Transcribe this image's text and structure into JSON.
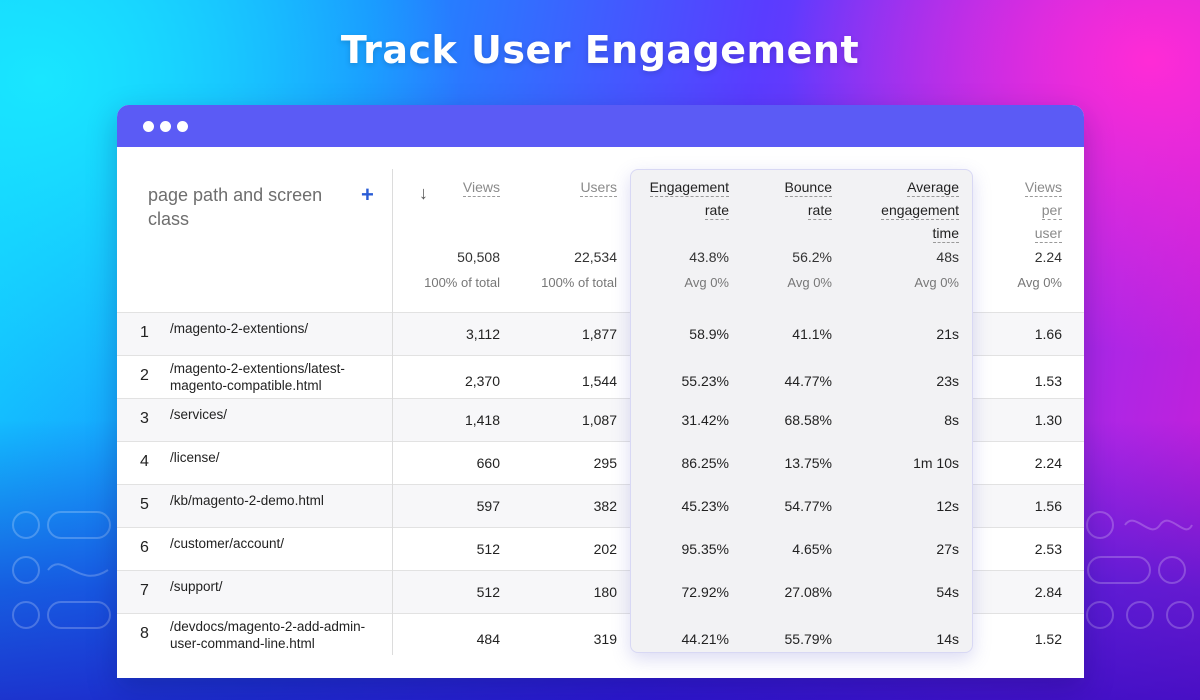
{
  "banner": {
    "title": "Track User Engagement"
  },
  "colors": {
    "window_bar": "#5b5bf5",
    "plus_accent": "#2a5cd6",
    "highlight_border": "#d8d8f4"
  },
  "table": {
    "dimension_header": "page path and screen class",
    "add_icon": "plus-icon",
    "sort_icon": "down-arrow-icon",
    "columns": [
      {
        "label_lines": [
          "Views"
        ],
        "total": "50,508",
        "sub": "100% of total"
      },
      {
        "label_lines": [
          "Users"
        ],
        "total": "22,534",
        "sub": "100% of total"
      },
      {
        "label_lines": [
          "Engagement",
          "rate"
        ],
        "total": "43.8%",
        "sub": "Avg 0%"
      },
      {
        "label_lines": [
          "Bounce",
          "rate"
        ],
        "total": "56.2%",
        "sub": "Avg 0%"
      },
      {
        "label_lines": [
          "Average",
          "engagement",
          "time"
        ],
        "total": "48s",
        "sub": "Avg 0%"
      },
      {
        "label_lines": [
          "Views",
          "per",
          "user"
        ],
        "total": "2.24",
        "sub": "Avg 0%"
      }
    ],
    "rows": [
      {
        "num": "1",
        "path": [
          "/magento-2-extentions/"
        ],
        "cells": [
          "3,112",
          "1,877",
          "58.9%",
          "41.1%",
          "21s",
          "1.66"
        ]
      },
      {
        "num": "2",
        "path": [
          "/magento-2-extentions/latest-",
          "magento-compatible.html"
        ],
        "cells": [
          "2,370",
          "1,544",
          "55.23%",
          "44.77%",
          "23s",
          "1.53"
        ]
      },
      {
        "num": "3",
        "path": [
          "/services/"
        ],
        "cells": [
          "1,418",
          "1,087",
          "31.42%",
          "68.58%",
          "8s",
          "1.30"
        ]
      },
      {
        "num": "4",
        "path": [
          "/license/"
        ],
        "cells": [
          "660",
          "295",
          "86.25%",
          "13.75%",
          "1m 10s",
          "2.24"
        ]
      },
      {
        "num": "5",
        "path": [
          "/kb/magento-2-demo.html"
        ],
        "cells": [
          "597",
          "382",
          "45.23%",
          "54.77%",
          "12s",
          "1.56"
        ]
      },
      {
        "num": "6",
        "path": [
          "/customer/account/"
        ],
        "cells": [
          "512",
          "202",
          "95.35%",
          "4.65%",
          "27s",
          "2.53"
        ]
      },
      {
        "num": "7",
        "path": [
          "/support/"
        ],
        "cells": [
          "512",
          "180",
          "72.92%",
          "27.08%",
          "54s",
          "2.84"
        ]
      },
      {
        "num": "8",
        "path": [
          "/devdocs/magento-2-add-admin-",
          "user-command-line.html"
        ],
        "cells": [
          "484",
          "319",
          "44.21%",
          "55.79%",
          "14s",
          "1.52"
        ]
      }
    ]
  }
}
